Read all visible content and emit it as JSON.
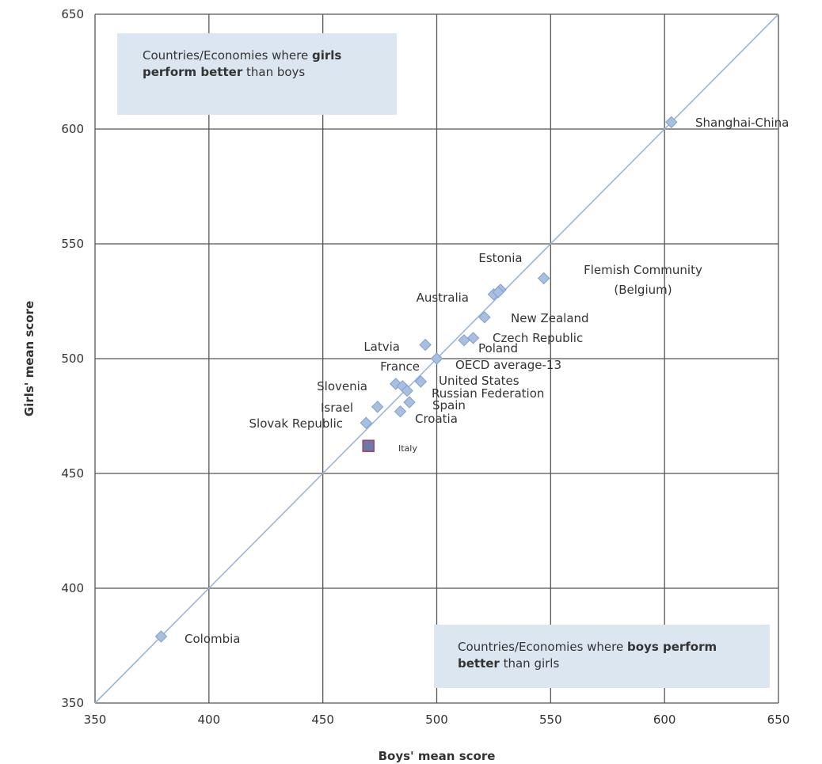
{
  "chart_data": {
    "type": "scatter",
    "xlabel": "Boys' mean score",
    "ylabel": "Girls' mean score",
    "xlim": [
      350,
      650
    ],
    "ylim": [
      350,
      650
    ],
    "x_ticks": [
      "350",
      "400",
      "450",
      "500",
      "550",
      "600",
      "650"
    ],
    "y_ticks": [
      "350",
      "400",
      "450",
      "500",
      "550",
      "600",
      "650"
    ],
    "grid": true,
    "reference_line": "y = x",
    "colors": {
      "point": "#a9bfe0",
      "point_edge": "#7f9fcf",
      "highlight": "#6b78a8",
      "highlight_edge": "#a04060",
      "grid": "#555555",
      "diagonal": "#9db5d8",
      "note_bg": "#dce6f1"
    },
    "points": [
      {
        "label": "Shanghai-China",
        "x": 603,
        "y": 603
      },
      {
        "label": "Flemish Community (Belgium)",
        "label_lines": [
          "Flemish Community",
          "(Belgium)"
        ],
        "x": 547,
        "y": 535
      },
      {
        "label": "Estonia",
        "x": 528,
        "y": 530
      },
      {
        "label": "",
        "x": 525,
        "y": 528
      },
      {
        "label": "Australia",
        "x": 527,
        "y": 529
      },
      {
        "label": "New Zealand",
        "x": 521,
        "y": 518
      },
      {
        "label": "Czech Republic",
        "x": 516,
        "y": 509
      },
      {
        "label": "Poland",
        "x": 512,
        "y": 508
      },
      {
        "label": "Latvia",
        "x": 495,
        "y": 506
      },
      {
        "label": "OECD average-13",
        "x": 500,
        "y": 500
      },
      {
        "label": "France",
        "x": 482,
        "y": 489
      },
      {
        "label": "United States",
        "x": 493,
        "y": 490
      },
      {
        "label": "Slovenia",
        "x": 485,
        "y": 488
      },
      {
        "label": "Russian Federation",
        "x": 487,
        "y": 486
      },
      {
        "label": "Spain",
        "x": 488,
        "y": 481
      },
      {
        "label": "Israel",
        "x": 474,
        "y": 479
      },
      {
        "label": "Croatia",
        "x": 484,
        "y": 477
      },
      {
        "label": "Slovak Republic",
        "x": 469,
        "y": 472
      },
      {
        "label": "Italy",
        "x": 470,
        "y": 462,
        "highlight": true
      },
      {
        "label": "Colombia",
        "x": 379,
        "y": 379
      }
    ]
  },
  "notes": {
    "girls": {
      "pre": "Countries/Economies where ",
      "bold": "girls perform better",
      "post": " than boys"
    },
    "boys": {
      "pre": "Countries/Economies where ",
      "bold": "boys perform better",
      "post": " than girls"
    }
  }
}
